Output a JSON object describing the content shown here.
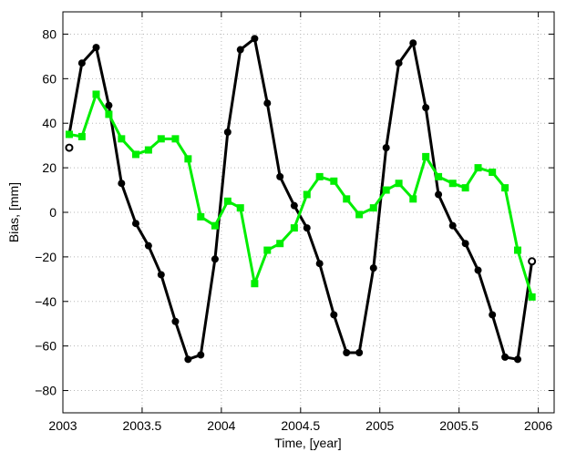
{
  "chart_data": {
    "type": "line",
    "title": "",
    "xlabel": "Time, [year]",
    "ylabel": "Bias, [mm]",
    "xlim": [
      2003,
      2006.1
    ],
    "ylim": [
      -90,
      90
    ],
    "xticks": [
      2003,
      2003.5,
      2004,
      2004.5,
      2005,
      2005.5,
      2006
    ],
    "xtick_labels": [
      "2003",
      "2003.5",
      "2004",
      "2004.5",
      "2005",
      "2005.5",
      "2006"
    ],
    "yticks": [
      -80,
      -60,
      -40,
      -20,
      0,
      20,
      40,
      60,
      80
    ],
    "ytick_labels": [
      "−80",
      "−60",
      "−40",
      "−20",
      "0",
      "20",
      "40",
      "60",
      "80"
    ],
    "grid": true,
    "series": [
      {
        "color": "#000000",
        "marker": "circle",
        "x": [
          2003.04,
          2003.12,
          2003.21,
          2003.29,
          2003.37,
          2003.46,
          2003.54,
          2003.62,
          2003.71,
          2003.79,
          2003.87,
          2003.96,
          2004.04,
          2004.12,
          2004.21,
          2004.29,
          2004.37,
          2004.46,
          2004.54,
          2004.62,
          2004.71,
          2004.79,
          2004.87,
          2004.96,
          2005.04,
          2005.12,
          2005.21,
          2005.29,
          2005.37,
          2005.46,
          2005.54,
          2005.62,
          2005.71,
          2005.79,
          2005.87,
          2005.96
        ],
        "y": [
          35,
          67,
          74,
          48,
          13,
          -5,
          -15,
          -28,
          -49,
          -66,
          -64,
          -21,
          36,
          73,
          78,
          49,
          16,
          3,
          -7,
          -23,
          -46,
          -63,
          -63,
          -25,
          29,
          67,
          76,
          47,
          8,
          -6,
          -14,
          -26,
          -46,
          -65,
          -66,
          -22
        ]
      },
      {
        "color": "#00ee00",
        "marker": "square",
        "x": [
          2003.04,
          2003.12,
          2003.21,
          2003.29,
          2003.37,
          2003.46,
          2003.54,
          2003.62,
          2003.71,
          2003.79,
          2003.87,
          2003.96,
          2004.04,
          2004.12,
          2004.21,
          2004.29,
          2004.37,
          2004.46,
          2004.54,
          2004.62,
          2004.71,
          2004.79,
          2004.87,
          2004.96,
          2005.04,
          2005.12,
          2005.21,
          2005.29,
          2005.37,
          2005.46,
          2005.54,
          2005.62,
          2005.71,
          2005.79,
          2005.87,
          2005.96
        ],
        "y": [
          35,
          34,
          53,
          44,
          33,
          26,
          28,
          33,
          33,
          24,
          -2,
          -6,
          5,
          2,
          -32,
          -17,
          -14,
          -7,
          8,
          16,
          14,
          6,
          -1,
          2,
          10,
          13,
          6,
          25,
          16,
          13,
          11,
          20,
          18,
          11,
          -17,
          -38
        ]
      }
    ],
    "extra_markers": [
      {
        "x": 2003.04,
        "y": 29,
        "marker": "open-circle",
        "color": "#000000"
      },
      {
        "x": 2005.96,
        "y": -22,
        "marker": "open-circle",
        "color": "#000000"
      }
    ]
  }
}
